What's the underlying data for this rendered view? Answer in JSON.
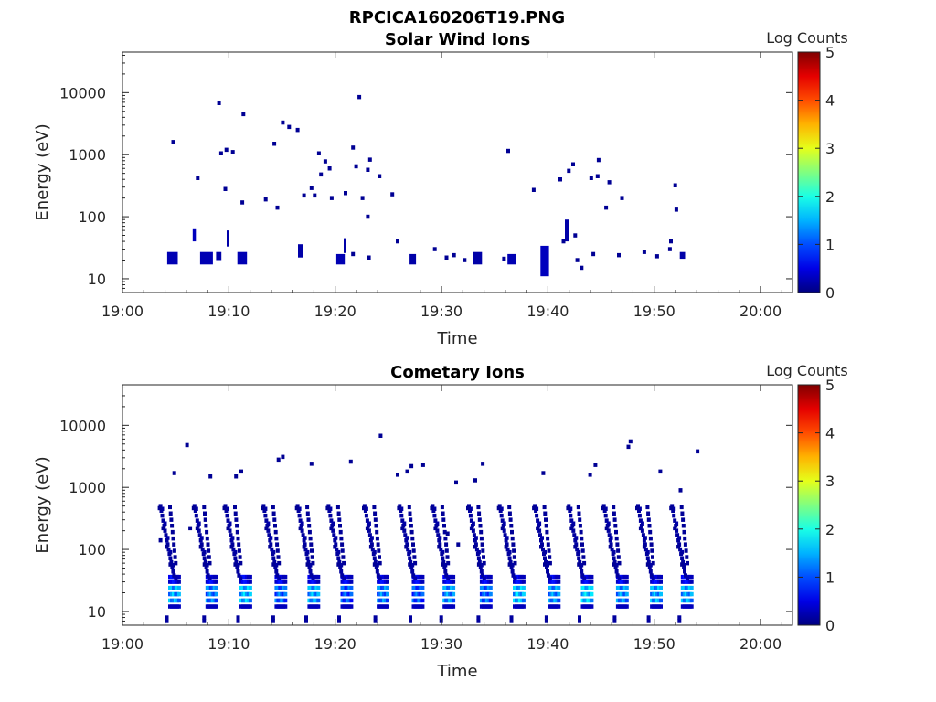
{
  "figure_title": "RPCICA160206T19.PNG",
  "chart_data": [
    {
      "type": "heatmap",
      "title": "Solar Wind Ions",
      "xlabel": "Time",
      "ylabel": "Energy (eV)",
      "colorbar_label": "Log Counts",
      "colormap": "jet",
      "colorbar_range": [
        0,
        5
      ],
      "colorbar_ticks": [
        "0",
        "1",
        "2",
        "3",
        "4",
        "5"
      ],
      "x_range_minutes": [
        0,
        63
      ],
      "x_ticks": [
        {
          "label": "19:00",
          "min": 0
        },
        {
          "label": "19:10",
          "min": 10
        },
        {
          "label": "19:20",
          "min": 20
        },
        {
          "label": "19:30",
          "min": 30
        },
        {
          "label": "19:40",
          "min": 40
        },
        {
          "label": "19:50",
          "min": 50
        },
        {
          "label": "20:00",
          "min": 60
        }
      ],
      "y_scale": "log",
      "y_range": [
        6,
        45000
      ],
      "y_ticks": [
        {
          "label": "10",
          "value": 10
        },
        {
          "label": "100",
          "value": 100
        },
        {
          "label": "1000",
          "value": 1000
        },
        {
          "label": "10000",
          "value": 10000
        }
      ],
      "grid": false,
      "blocks": [
        {
          "t0": 4.2,
          "t1": 5.2,
          "e0": 17,
          "e1": 27,
          "v": 0.25
        },
        {
          "t0": 6.6,
          "t1": 6.9,
          "e0": 40,
          "e1": 65,
          "v": 0.3
        },
        {
          "t0": 7.3,
          "t1": 8.5,
          "e0": 17,
          "e1": 27,
          "v": 0.25
        },
        {
          "t0": 8.8,
          "t1": 9.3,
          "e0": 20,
          "e1": 27,
          "v": 0.2
        },
        {
          "t0": 9.8,
          "t1": 10.0,
          "e0": 33,
          "e1": 60,
          "v": 0.2
        },
        {
          "t0": 10.8,
          "t1": 11.7,
          "e0": 17,
          "e1": 27,
          "v": 0.25
        },
        {
          "t0": 16.5,
          "t1": 17.0,
          "e0": 22,
          "e1": 36,
          "v": 0.2
        },
        {
          "t0": 20.1,
          "t1": 20.9,
          "e0": 17,
          "e1": 25,
          "v": 0.25
        },
        {
          "t0": 20.8,
          "t1": 21.0,
          "e0": 26,
          "e1": 45,
          "v": 0.2
        },
        {
          "t0": 27.0,
          "t1": 27.6,
          "e0": 17,
          "e1": 25,
          "v": 0.2
        },
        {
          "t0": 33.0,
          "t1": 33.8,
          "e0": 17,
          "e1": 27,
          "v": 0.2
        },
        {
          "t0": 36.2,
          "t1": 37.0,
          "e0": 17,
          "e1": 25,
          "v": 0.25
        },
        {
          "t0": 39.3,
          "t1": 40.1,
          "e0": 11,
          "e1": 34,
          "v": 0.3
        },
        {
          "t0": 41.6,
          "t1": 42.0,
          "e0": 40,
          "e1": 90,
          "v": 0.2
        },
        {
          "t0": 52.4,
          "t1": 52.9,
          "e0": 21,
          "e1": 27,
          "v": 0.2
        }
      ],
      "pixels": [
        [
          4.6,
          1600
        ],
        [
          6.9,
          420
        ],
        [
          8.9,
          6800
        ],
        [
          9.1,
          1050
        ],
        [
          9.5,
          280
        ],
        [
          9.6,
          1200
        ],
        [
          10.2,
          1100
        ],
        [
          11.2,
          4500
        ],
        [
          11.1,
          170
        ],
        [
          13.3,
          190
        ],
        [
          14.1,
          1500
        ],
        [
          14.4,
          140
        ],
        [
          14.9,
          3300
        ],
        [
          15.5,
          2800
        ],
        [
          16.3,
          2500
        ],
        [
          16.9,
          220
        ],
        [
          17.6,
          290
        ],
        [
          17.9,
          220
        ],
        [
          18.3,
          1050
        ],
        [
          18.5,
          480
        ],
        [
          18.9,
          780
        ],
        [
          19.3,
          600
        ],
        [
          19.5,
          200
        ],
        [
          20.8,
          240
        ],
        [
          21.5,
          1300
        ],
        [
          21.8,
          650
        ],
        [
          22.1,
          8500
        ],
        [
          22.4,
          200
        ],
        [
          22.9,
          570
        ],
        [
          23.1,
          830
        ],
        [
          24.0,
          450
        ],
        [
          25.2,
          230
        ],
        [
          36.1,
          1150
        ],
        [
          38.5,
          270
        ],
        [
          41.0,
          400
        ],
        [
          41.8,
          550
        ],
        [
          42.2,
          700
        ],
        [
          43.9,
          420
        ],
        [
          44.5,
          450
        ],
        [
          44.6,
          820
        ],
        [
          45.6,
          360
        ],
        [
          46.8,
          200
        ],
        [
          51.8,
          320
        ],
        [
          51.9,
          130
        ],
        [
          45.3,
          140
        ],
        [
          51.4,
          40
        ],
        [
          29.2,
          30
        ],
        [
          25.7,
          40
        ],
        [
          23.0,
          22
        ],
        [
          42.6,
          20
        ],
        [
          43.0,
          15
        ],
        [
          44.1,
          25
        ],
        [
          48.9,
          27
        ],
        [
          50.1,
          23
        ],
        [
          51.3,
          30
        ],
        [
          21.5,
          25
        ],
        [
          46.5,
          24
        ],
        [
          30.3,
          22
        ],
        [
          31.0,
          24
        ],
        [
          32.0,
          20
        ],
        [
          35.7,
          21
        ],
        [
          41.3,
          40
        ],
        [
          42.4,
          50
        ],
        [
          22.9,
          100
        ]
      ]
    },
    {
      "type": "heatmap",
      "title": "Cometary Ions",
      "xlabel": "Time",
      "ylabel": "Energy (eV)",
      "colorbar_label": "Log Counts",
      "colormap": "jet",
      "colorbar_range": [
        0,
        5
      ],
      "colorbar_ticks": [
        "0",
        "1",
        "2",
        "3",
        "4",
        "5"
      ],
      "x_range_minutes": [
        0,
        63
      ],
      "x_ticks": [
        {
          "label": "19:00",
          "min": 0
        },
        {
          "label": "19:10",
          "min": 10
        },
        {
          "label": "19:20",
          "min": 20
        },
        {
          "label": "19:30",
          "min": 30
        },
        {
          "label": "19:40",
          "min": 40
        },
        {
          "label": "19:50",
          "min": 50
        },
        {
          "label": "20:00",
          "min": 60
        }
      ],
      "y_scale": "log",
      "y_range": [
        6,
        45000
      ],
      "y_ticks": [
        {
          "label": "10",
          "value": 10
        },
        {
          "label": "100",
          "value": 100
        },
        {
          "label": "1000",
          "value": 1000
        },
        {
          "label": "10000",
          "value": 10000
        }
      ],
      "grid": false,
      "bursts": [
        {
          "t": 4.3,
          "peak": 1.4,
          "cool_t": 3.4
        },
        {
          "t": 7.8,
          "peak": 1.2,
          "cool_t": 6.6
        },
        {
          "t": 11.0,
          "peak": 1.5,
          "cool_t": 9.5
        },
        {
          "t": 14.3,
          "peak": 1.1,
          "cool_t": 13.1
        },
        {
          "t": 17.4,
          "peak": 1.4,
          "cool_t": 16.3
        },
        {
          "t": 20.5,
          "peak": 1.0,
          "cool_t": 19.2
        },
        {
          "t": 23.9,
          "peak": 1.2,
          "cool_t": 22.6
        },
        {
          "t": 27.2,
          "peak": 1.0,
          "cool_t": 25.9
        },
        {
          "t": 30.1,
          "peak": 1.3,
          "cool_t": 29.0
        },
        {
          "t": 33.6,
          "peak": 1.1,
          "cool_t": 32.4
        },
        {
          "t": 36.7,
          "peak": 1.5,
          "cool_t": 35.3
        },
        {
          "t": 40.0,
          "peak": 1.3,
          "cool_t": 38.6
        },
        {
          "t": 43.1,
          "peak": 1.6,
          "cool_t": 41.8
        },
        {
          "t": 46.4,
          "peak": 1.3,
          "cool_t": 45.1
        },
        {
          "t": 49.6,
          "peak": 1.4,
          "cool_t": 48.3
        },
        {
          "t": 52.5,
          "peak": 1.4,
          "cool_t": 51.5
        }
      ],
      "pixels": [
        [
          5.9,
          4800
        ],
        [
          4.7,
          1700
        ],
        [
          8.1,
          1500
        ],
        [
          10.5,
          1500
        ],
        [
          11.0,
          1800
        ],
        [
          14.5,
          2800
        ],
        [
          14.9,
          3100
        ],
        [
          17.6,
          2400
        ],
        [
          21.3,
          2600
        ],
        [
          24.1,
          6800
        ],
        [
          27.0,
          2200
        ],
        [
          25.7,
          1600
        ],
        [
          28.1,
          2300
        ],
        [
          33.0,
          1300
        ],
        [
          33.7,
          2400
        ],
        [
          39.4,
          1700
        ],
        [
          43.8,
          1600
        ],
        [
          44.3,
          2300
        ],
        [
          47.4,
          4500
        ],
        [
          47.6,
          5500
        ],
        [
          50.4,
          1800
        ],
        [
          53.9,
          3800
        ],
        [
          52.3,
          900
        ],
        [
          3.4,
          140
        ],
        [
          6.2,
          220
        ],
        [
          30.4,
          180
        ],
        [
          31.4,
          120
        ],
        [
          26.6,
          1800
        ],
        [
          31.2,
          1200
        ]
      ]
    }
  ]
}
